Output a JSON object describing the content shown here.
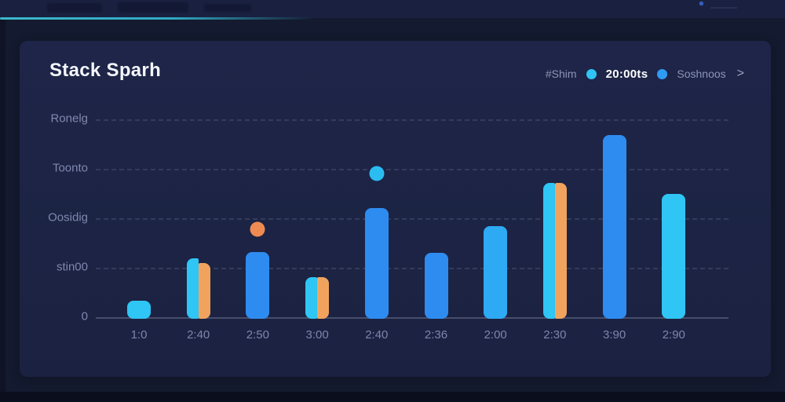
{
  "card": {
    "title": "Stack Sparh",
    "legend": {
      "muted_label": "#Shim",
      "dot1_color": "#2fc5f5",
      "value": "20:00ts",
      "dot2_color": "#2e9bf5",
      "series_label": "Soshnoos",
      "chevron": ">"
    }
  },
  "chart_data": {
    "type": "bar",
    "title": "Stack Sparh",
    "grid": "horizontal-dashed",
    "legend_position": "top-right",
    "ylim": [
      0,
      4.2
    ],
    "y_axis_bottom_to_top": [
      "0",
      "stin00",
      "Oosidig",
      "Toonto",
      "Ronelg"
    ],
    "x_labels": [
      "1:0",
      "2:40",
      "2:50",
      "3:00",
      "2:40",
      "2:36",
      "2:00",
      "2:30",
      "3:90",
      "2:90"
    ],
    "colors": {
      "cyan": "#2fc5f5",
      "blue": "#2e8cf0",
      "lightblue": "#2ea9f4",
      "orange": "#f1a35e",
      "dot_orange": "#ee8b52",
      "dot_cyan": "#2bbcf1"
    },
    "columns": [
      {
        "label": "1:0",
        "bars": [
          {
            "series": "cyan",
            "value": 0.33
          }
        ]
      },
      {
        "label": "2:40",
        "split": true,
        "bars": [
          {
            "series": "cyan",
            "value": 1.19
          },
          {
            "series": "orange",
            "value": 1.1
          }
        ]
      },
      {
        "label": "2:50",
        "bars": [
          {
            "series": "blue",
            "value": 1.32
          }
        ],
        "dot": {
          "series": "dot_orange",
          "value": 1.78
        }
      },
      {
        "label": "3:00",
        "split": true,
        "bars": [
          {
            "series": "cyan",
            "value": 0.81
          },
          {
            "series": "orange",
            "value": 0.81
          }
        ]
      },
      {
        "label": "2:40",
        "bars": [
          {
            "series": "blue",
            "value": 2.21
          }
        ],
        "dot": {
          "series": "dot_cyan",
          "value": 2.9
        }
      },
      {
        "label": "2:36",
        "bars": [
          {
            "series": "blue",
            "value": 1.3
          }
        ]
      },
      {
        "label": "2:00",
        "bars": [
          {
            "series": "lightblue",
            "value": 1.84
          }
        ]
      },
      {
        "label": "2:30",
        "split": true,
        "bars": [
          {
            "series": "cyan",
            "value": 2.71
          },
          {
            "series": "orange",
            "value": 2.71
          }
        ]
      },
      {
        "label": "3:90",
        "bars": [
          {
            "series": "blue",
            "value": 3.68
          }
        ]
      },
      {
        "label": "2:90",
        "bars": [
          {
            "series": "cyan",
            "value": 2.49
          }
        ]
      }
    ]
  }
}
